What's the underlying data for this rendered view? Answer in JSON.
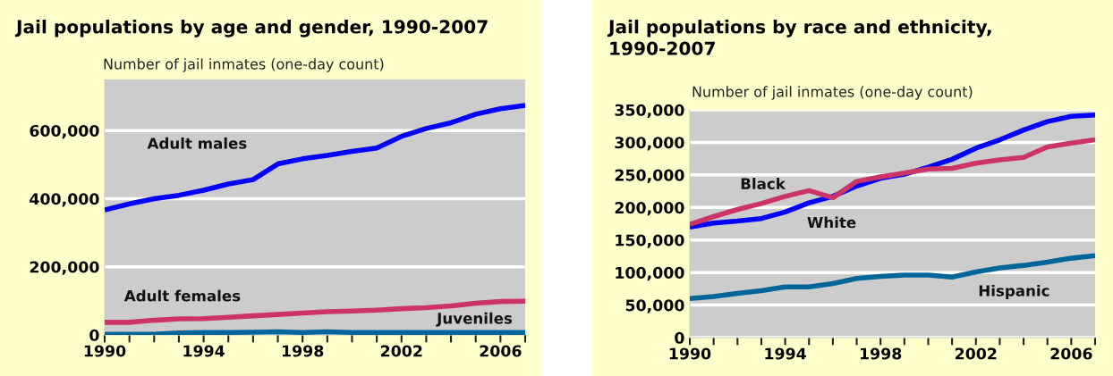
{
  "chart_data": [
    {
      "type": "line",
      "title": "Jail populations by age and gender, 1990-2007",
      "ylabel": "Number of jail inmates (one-day count)",
      "x": [
        1990,
        1991,
        1992,
        1993,
        1994,
        1995,
        1996,
        1997,
        1998,
        1999,
        2000,
        2001,
        2002,
        2003,
        2004,
        2005,
        2006,
        2007
      ],
      "series": [
        {
          "name": "Adult males",
          "color": "#0000ff",
          "values": [
            367000,
            385000,
            400000,
            410000,
            425000,
            443000,
            456000,
            502000,
            517000,
            527000,
            539000,
            549000,
            583000,
            606000,
            623000,
            648000,
            664000,
            674000
          ]
        },
        {
          "name": "Adult females",
          "color": "#cc3366",
          "values": [
            37000,
            37000,
            43000,
            47000,
            48000,
            52000,
            56000,
            60000,
            64000,
            68000,
            70000,
            73000,
            77000,
            80000,
            85000,
            93000,
            98000,
            99000
          ]
        },
        {
          "name": "Juveniles",
          "color": "#006699",
          "values": [
            2000,
            2000,
            2000,
            6000,
            7000,
            7000,
            8000,
            9000,
            7000,
            9000,
            7000,
            7000,
            7000,
            7000,
            7000,
            7000,
            7000,
            7000
          ]
        }
      ],
      "xlim": [
        1990,
        2007
      ],
      "ylim": [
        0,
        750000
      ],
      "xticks": [
        1990,
        {
          "value": 1991,
          "label": null
        },
        {
          "value": 1992,
          "label": null
        },
        {
          "value": 1993,
          "label": null
        },
        1994,
        {
          "value": 1995,
          "label": null
        },
        {
          "value": 1996,
          "label": null
        },
        {
          "value": 1997,
          "label": null
        },
        1998,
        {
          "value": 1999,
          "label": null
        },
        {
          "value": 2000,
          "label": null
        },
        {
          "value": 2001,
          "label": null
        },
        2002,
        {
          "value": 2003,
          "label": null
        },
        {
          "value": 2004,
          "label": null
        },
        {
          "value": 2005,
          "label": null
        },
        2006,
        {
          "value": 2007,
          "label": null
        }
      ],
      "yticks": [
        0,
        {
          "value": 200000,
          "label": "200,000"
        },
        {
          "value": 400000,
          "label": "400,000"
        },
        {
          "value": 600000,
          "label": "600,000"
        }
      ],
      "grid": "y",
      "marker": "none",
      "line_style": "solid"
    },
    {
      "type": "line",
      "title": "Jail populations by race and ethnicity,\n1990-2007",
      "ylabel": "Number of jail inmates (one-day count)",
      "x": [
        1990,
        1991,
        1992,
        1993,
        1994,
        1995,
        1996,
        1997,
        1998,
        1999,
        2000,
        2001,
        2002,
        2003,
        2004,
        2005,
        2006,
        2007
      ],
      "series": [
        {
          "name": "White",
          "color": "#0000ff",
          "values": [
            170000,
            176000,
            179000,
            183000,
            193000,
            207000,
            217000,
            233000,
            245000,
            251000,
            262000,
            274000,
            291000,
            304000,
            319000,
            332000,
            340000,
            342000
          ]
        },
        {
          "name": "Black",
          "color": "#cc3366",
          "values": [
            174000,
            186000,
            197000,
            206000,
            217000,
            226000,
            215000,
            240000,
            247000,
            253000,
            259000,
            260000,
            268000,
            273000,
            277000,
            293000,
            299000,
            304000
          ]
        },
        {
          "name": "Hispanic",
          "color": "#006699",
          "values": [
            60000,
            63000,
            68000,
            72000,
            78000,
            78000,
            83000,
            91000,
            94000,
            96000,
            96000,
            93000,
            101000,
            107000,
            111000,
            116000,
            122000,
            126000
          ]
        }
      ],
      "xlim": [
        1990,
        2007
      ],
      "ylim": [
        0,
        350000
      ],
      "xticks": [
        1990,
        {
          "value": 1991,
          "label": null
        },
        {
          "value": 1992,
          "label": null
        },
        {
          "value": 1993,
          "label": null
        },
        1994,
        {
          "value": 1995,
          "label": null
        },
        {
          "value": 1996,
          "label": null
        },
        {
          "value": 1997,
          "label": null
        },
        1998,
        {
          "value": 1999,
          "label": null
        },
        {
          "value": 2000,
          "label": null
        },
        {
          "value": 2001,
          "label": null
        },
        2002,
        {
          "value": 2003,
          "label": null
        },
        {
          "value": 2004,
          "label": null
        },
        {
          "value": 2005,
          "label": null
        },
        2006,
        {
          "value": 2007,
          "label": null
        }
      ],
      "yticks": [
        0,
        {
          "value": 50000,
          "label": "50,000"
        },
        {
          "value": 100000,
          "label": "100,000"
        },
        {
          "value": 150000,
          "label": "150,000"
        },
        {
          "value": 200000,
          "label": "200,000"
        },
        {
          "value": 250000,
          "label": "250,000"
        },
        {
          "value": 300000,
          "label": "300,000"
        },
        {
          "value": 350000,
          "label": "350,000"
        }
      ],
      "grid": "y",
      "marker": "none",
      "line_style": "solid"
    }
  ]
}
